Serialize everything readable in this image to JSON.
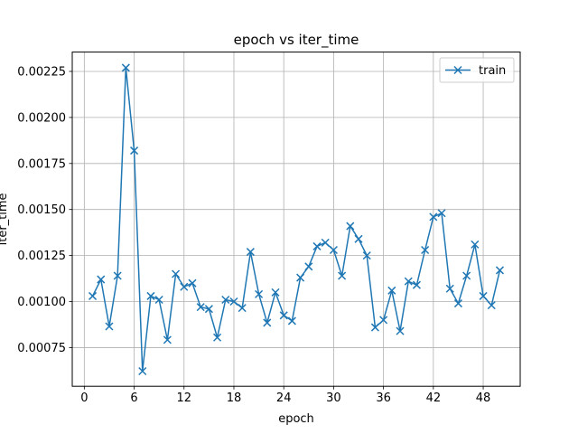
{
  "chart_data": {
    "type": "line",
    "title": "epoch vs iter_time",
    "xlabel": "epoch",
    "ylabel": "iter_time",
    "xlim": [
      -1.45,
      52.45
    ],
    "ylim": [
      0.00054,
      0.002355
    ],
    "xticks": [
      0,
      6,
      12,
      18,
      24,
      30,
      36,
      42,
      48
    ],
    "yticks": [
      0.00075,
      0.001,
      0.00125,
      0.0015,
      0.00175,
      0.002,
      0.00225
    ],
    "ytick_labels": [
      "0.00075",
      "0.00100",
      "0.00125",
      "0.00150",
      "0.00175",
      "0.00200",
      "0.00225"
    ],
    "grid": true,
    "legend_position": "top-right",
    "series": [
      {
        "name": "train",
        "color": "#1f77b4",
        "marker": "x",
        "x": [
          1,
          2,
          3,
          4,
          5,
          6,
          7,
          8,
          9,
          10,
          11,
          12,
          13,
          14,
          15,
          16,
          17,
          18,
          19,
          20,
          21,
          22,
          23,
          24,
          25,
          26,
          27,
          28,
          29,
          30,
          31,
          32,
          33,
          34,
          35,
          36,
          37,
          38,
          39,
          40,
          41,
          42,
          43,
          44,
          45,
          46,
          47,
          48,
          49,
          50
        ],
        "y": [
          0.00103,
          0.00112,
          0.000865,
          0.00114,
          0.00227,
          0.00182,
          0.000622,
          0.00103,
          0.00101,
          0.000792,
          0.00115,
          0.00108,
          0.0011,
          0.00097,
          0.00096,
          0.000805,
          0.00101,
          0.001,
          0.000965,
          0.00127,
          0.00104,
          0.000885,
          0.00105,
          0.000925,
          0.000895,
          0.00113,
          0.00119,
          0.0013,
          0.00132,
          0.00128,
          0.00114,
          0.00141,
          0.00134,
          0.00125,
          0.00086,
          0.0009,
          0.00106,
          0.00084,
          0.00111,
          0.00109,
          0.00128,
          0.00146,
          0.00148,
          0.00107,
          0.00099,
          0.00114,
          0.00131,
          0.00103,
          0.00098,
          0.00117
        ]
      }
    ]
  }
}
